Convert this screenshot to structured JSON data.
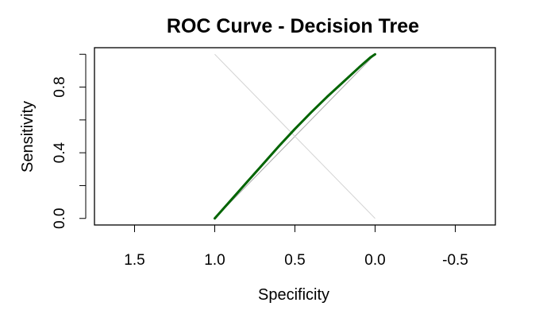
{
  "chart_data": {
    "type": "line",
    "title": "ROC Curve - Decision Tree",
    "xlabel": "Specificity",
    "ylabel": "Sensitivity",
    "x_reversed": true,
    "xlim": [
      1.75,
      -0.75
    ],
    "ylim": [
      -0.04,
      1.04
    ],
    "x_ticks": [
      1.5,
      1.0,
      0.5,
      0.0,
      -0.5
    ],
    "x_tick_labels": [
      "1.5",
      "1.0",
      "0.5",
      "0.0",
      "-0.5"
    ],
    "y_ticks": [
      0.0,
      0.2,
      0.4,
      0.6,
      0.8,
      1.0
    ],
    "y_tick_labels": [
      "0.0",
      "",
      "0.4",
      "",
      "0.8",
      ""
    ],
    "grid": false,
    "series": [
      {
        "color": "#006400",
        "x": [
          1.0,
          0.9,
          0.8,
          0.7,
          0.6,
          0.5,
          0.4,
          0.3,
          0.2,
          0.1,
          0.03,
          0.0
        ],
        "y": [
          0.0,
          0.11,
          0.22,
          0.33,
          0.44,
          0.545,
          0.645,
          0.74,
          0.83,
          0.92,
          0.98,
          1.0
        ]
      }
    ],
    "reference_lines": [
      {
        "kind": "chance-diagonal",
        "color": "#a9a9a9",
        "from": [
          1.0,
          0.0
        ],
        "to": [
          0.0,
          1.0
        ]
      },
      {
        "kind": "anti-diagonal",
        "color": "#d3d3d3",
        "from": [
          1.0,
          1.0
        ],
        "to": [
          0.0,
          0.0
        ]
      }
    ]
  }
}
